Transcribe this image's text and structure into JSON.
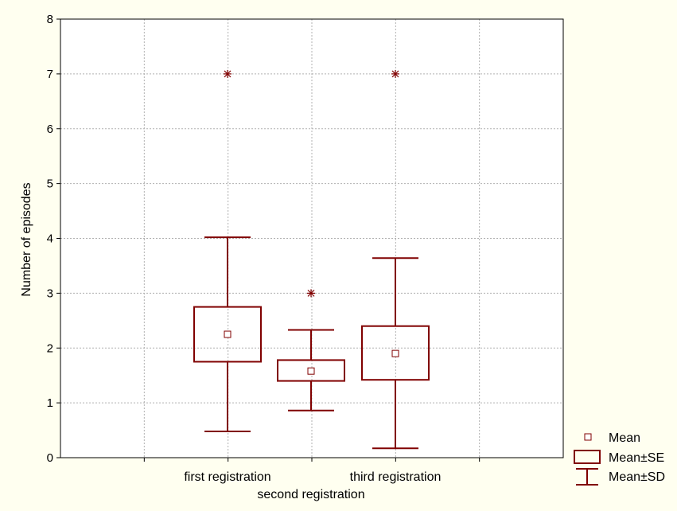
{
  "chart_data": {
    "type": "box",
    "categories": [
      "first registration",
      "second registration",
      "third registration"
    ],
    "ylabel": "Number of episodes",
    "ylim": [
      0,
      8
    ],
    "yticks": [
      0,
      1,
      2,
      3,
      4,
      5,
      6,
      7,
      8
    ],
    "grid": true,
    "series": [
      {
        "category": "first registration",
        "mean": 2.25,
        "se_low": 1.75,
        "se_high": 2.75,
        "sd_low": 0.48,
        "sd_high": 4.02,
        "outliers": [
          7
        ]
      },
      {
        "category": "second registration",
        "mean": 1.58,
        "se_low": 1.4,
        "se_high": 1.78,
        "sd_low": 0.86,
        "sd_high": 2.33,
        "outliers": [
          3
        ]
      },
      {
        "category": "third registration",
        "mean": 1.9,
        "se_low": 1.42,
        "se_high": 2.4,
        "sd_low": 0.17,
        "sd_high": 3.64,
        "outliers": [
          7
        ]
      }
    ],
    "legend": {
      "position": "bottom-right",
      "items": [
        "Mean",
        "Mean±SE",
        "Mean±SD"
      ]
    },
    "colors": {
      "box": "#800000",
      "grid": "#b0b0b0",
      "background": "#fffff0",
      "plot": "#ffffff"
    }
  }
}
